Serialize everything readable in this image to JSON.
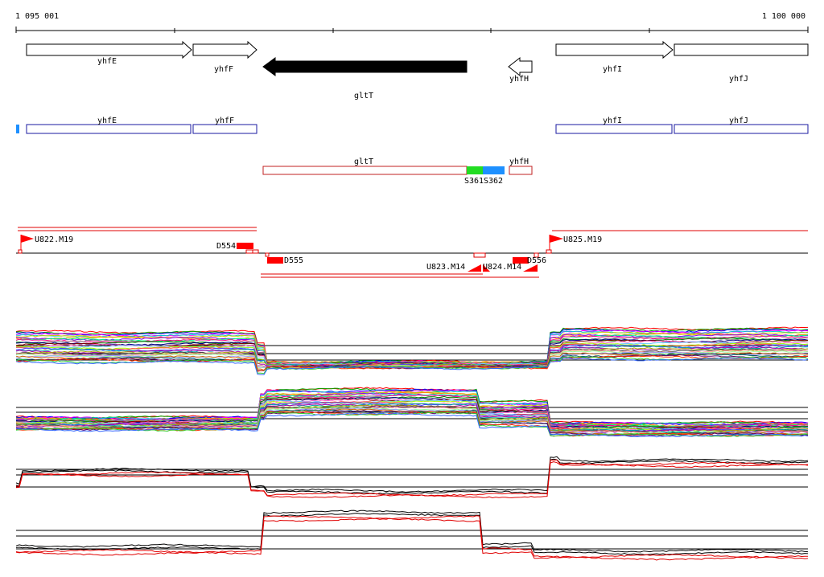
{
  "coordinate_axis": {
    "start_label": "1 095 001",
    "end_label": "1 100 000"
  },
  "annotated_genes": [
    {
      "id": "yhfE",
      "label": "yhfE",
      "strand": "+",
      "style": "outline"
    },
    {
      "id": "yhfF",
      "label": "yhfF",
      "strand": "+",
      "style": "outline"
    },
    {
      "id": "gltT",
      "label": "gltT",
      "strand": "-",
      "style": "filled"
    },
    {
      "id": "yhfH",
      "label": "yhfH",
      "strand": "-",
      "style": "outline"
    },
    {
      "id": "yhfI",
      "label": "yhfI",
      "strand": "+",
      "style": "outline"
    },
    {
      "id": "yhfJ",
      "label": "yhfJ",
      "strand": "",
      "style": "box"
    }
  ],
  "plus_strand_features": [
    {
      "label": "yhfE",
      "color": "#1a1aa0"
    },
    {
      "label": "yhfF",
      "color": "#1a1aa0"
    },
    {
      "label": "yhfI",
      "color": "#1a1aa0"
    },
    {
      "label": "yhfJ",
      "color": "#1a1aa0"
    }
  ],
  "minus_strand_features": [
    {
      "label": "gltT",
      "color": "#c02020"
    },
    {
      "label": "yhfH",
      "color": "#c02020"
    }
  ],
  "signature_segments": [
    {
      "label": "S361",
      "color": "#22dd22"
    },
    {
      "label": "S362",
      "color": "#1e90ff"
    }
  ],
  "promoter_features": [
    {
      "label": "U822.M19",
      "strand": "+"
    },
    {
      "label": "D554",
      "strand": "+"
    },
    {
      "label": "D555",
      "strand": "-"
    },
    {
      "label": "U823.M14",
      "strand": "-"
    },
    {
      "label": "U824.M14",
      "strand": "-"
    },
    {
      "label": "D556",
      "strand": "-"
    },
    {
      "label": "U825.M19",
      "strand": "+"
    }
  ],
  "expression_panels": [
    {
      "id": "plus-strand-conditions",
      "style": "multicolor"
    },
    {
      "id": "minus-strand-conditions",
      "style": "multicolor"
    },
    {
      "id": "plus-strand-summary",
      "style": "black-red"
    },
    {
      "id": "minus-strand-summary",
      "style": "black-red"
    }
  ],
  "colors": {
    "axis": "#000000",
    "gene_fill": "#000000",
    "plus_feature": "#1a1aa0",
    "minus_feature": "#c02020",
    "promoter_red": "#ff0000",
    "feature_marker_blue": "#1e90ff",
    "summary_black": "#000000",
    "summary_red": "#e00000"
  }
}
